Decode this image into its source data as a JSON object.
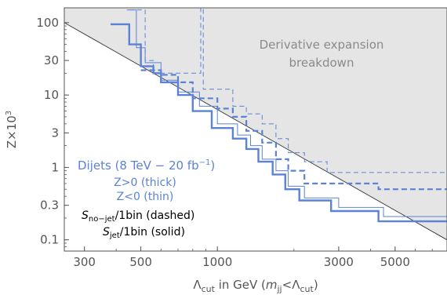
{
  "chart_data": {
    "type": "line",
    "scale": {
      "x": "log",
      "y": "log"
    },
    "xlim": [
      250,
      8000
    ],
    "ylim": [
      0.07,
      160
    ],
    "x_ticks": [
      300,
      500,
      1000,
      3000,
      5000
    ],
    "x_tick_labels": [
      "300",
      "500",
      "1000",
      "3000",
      "5000"
    ],
    "y_ticks": [
      0.1,
      0.3,
      1,
      3,
      10,
      30,
      100
    ],
    "y_tick_labels": [
      "0.1",
      "0.3",
      "1",
      "3",
      "10",
      "30",
      "100"
    ],
    "xlabel": {
      "lambda": "Λ",
      "cut_sub": "cut",
      "in_gev": " in GeV (",
      "m": "m",
      "jj_sub": "jj",
      "lt": "<Λ",
      "cut_sub2": "cut",
      "close": ")"
    },
    "ylabel": {
      "base": "Z×10",
      "exp": "3"
    },
    "shaded_region": {
      "label_line1": "Derivative expansion",
      "label_line2": "breakdown",
      "boundary": [
        [
          250,
          100
        ],
        [
          8000,
          0.1
        ]
      ],
      "fill": "#e5e5e5"
    },
    "legend": {
      "dijets_main": "Dijets (8 TeV − 20 fb",
      "dijets_exp": "−1",
      "dijets_close": ")",
      "thick": "Z>0 (thick)",
      "thin": "Z<0 (thin)",
      "nojet_S": "S",
      "nojet_sub": "no−jet",
      "nojet_rest": "/1bin (dashed)",
      "jet_S": "S",
      "jet_sub": "jet",
      "jet_rest": "/1bin (solid)"
    },
    "series": [
      {
        "style": "solid-thick",
        "points": [
          [
            380,
            95
          ],
          [
            450,
            95
          ],
          [
            450,
            50
          ],
          [
            500,
            50
          ],
          [
            500,
            25
          ],
          [
            560,
            25
          ],
          [
            560,
            20
          ],
          [
            600,
            20
          ],
          [
            600,
            15
          ],
          [
            700,
            15
          ],
          [
            700,
            10
          ],
          [
            800,
            10
          ],
          [
            800,
            6
          ],
          [
            950,
            6
          ],
          [
            950,
            3.5
          ],
          [
            1150,
            3.5
          ],
          [
            1150,
            2.5
          ],
          [
            1300,
            2.5
          ],
          [
            1300,
            1.8
          ],
          [
            1450,
            1.8
          ],
          [
            1450,
            1.2
          ],
          [
            1650,
            1.2
          ],
          [
            1650,
            0.8
          ],
          [
            1850,
            0.8
          ],
          [
            1850,
            0.5
          ],
          [
            2100,
            0.5
          ],
          [
            2100,
            0.35
          ],
          [
            2800,
            0.35
          ],
          [
            2800,
            0.25
          ],
          [
            4300,
            0.25
          ],
          [
            4300,
            0.18
          ],
          [
            8000,
            0.18
          ]
        ]
      },
      {
        "style": "solid-thin",
        "points": [
          [
            440,
            150
          ],
          [
            480,
            150
          ],
          [
            480,
            45
          ],
          [
            520,
            45
          ],
          [
            520,
            28
          ],
          [
            600,
            28
          ],
          [
            600,
            16
          ],
          [
            700,
            16
          ],
          [
            700,
            11
          ],
          [
            850,
            11
          ],
          [
            850,
            7
          ],
          [
            1000,
            7
          ],
          [
            1000,
            4
          ],
          [
            1200,
            4
          ],
          [
            1200,
            2.8
          ],
          [
            1350,
            2.8
          ],
          [
            1350,
            2
          ],
          [
            1500,
            2
          ],
          [
            1500,
            1.3
          ],
          [
            1700,
            1.3
          ],
          [
            1700,
            0.9
          ],
          [
            1900,
            0.9
          ],
          [
            1900,
            0.55
          ],
          [
            2200,
            0.55
          ],
          [
            2200,
            0.38
          ],
          [
            3000,
            0.38
          ],
          [
            3000,
            0.28
          ],
          [
            4500,
            0.28
          ],
          [
            4500,
            0.21
          ],
          [
            8000,
            0.21
          ]
        ]
      },
      {
        "style": "dashed-thick",
        "points": [
          [
            500,
            22
          ],
          [
            600,
            22
          ],
          [
            600,
            19
          ],
          [
            700,
            19
          ],
          [
            700,
            15
          ],
          [
            800,
            15
          ],
          [
            800,
            9
          ],
          [
            1000,
            9
          ],
          [
            1000,
            6.5
          ],
          [
            1150,
            6.5
          ],
          [
            1150,
            5
          ],
          [
            1300,
            5
          ],
          [
            1300,
            3.2
          ],
          [
            1500,
            3.2
          ],
          [
            1500,
            2.2
          ],
          [
            1700,
            2.2
          ],
          [
            1700,
            1.3
          ],
          [
            1900,
            1.3
          ],
          [
            1900,
            0.9
          ],
          [
            2200,
            0.9
          ],
          [
            2200,
            0.6
          ],
          [
            4300,
            0.6
          ],
          [
            4300,
            0.5
          ],
          [
            8000,
            0.5
          ]
        ]
      },
      {
        "style": "dashed-thin",
        "points": [
          [
            450,
            150
          ],
          [
            520,
            150
          ],
          [
            520,
            30
          ],
          [
            560,
            30
          ],
          [
            560,
            20
          ],
          [
            860,
            20
          ],
          [
            860,
            160
          ],
          [
            880,
            160
          ],
          [
            880,
            12
          ],
          [
            1150,
            12
          ],
          [
            1150,
            7
          ],
          [
            1300,
            7
          ],
          [
            1300,
            5.5
          ],
          [
            1500,
            5.5
          ],
          [
            1500,
            4
          ],
          [
            1700,
            4
          ],
          [
            1700,
            2.5
          ],
          [
            1900,
            2.5
          ],
          [
            1900,
            1.6
          ],
          [
            2200,
            1.6
          ],
          [
            2200,
            1.2
          ],
          [
            2700,
            1.2
          ],
          [
            2700,
            0.85
          ],
          [
            8000,
            0.85
          ]
        ]
      }
    ],
    "colors": {
      "series": "#5b82d6",
      "shade": "#e5e5e5",
      "frame": "#555555",
      "boundary": "#333333"
    }
  }
}
